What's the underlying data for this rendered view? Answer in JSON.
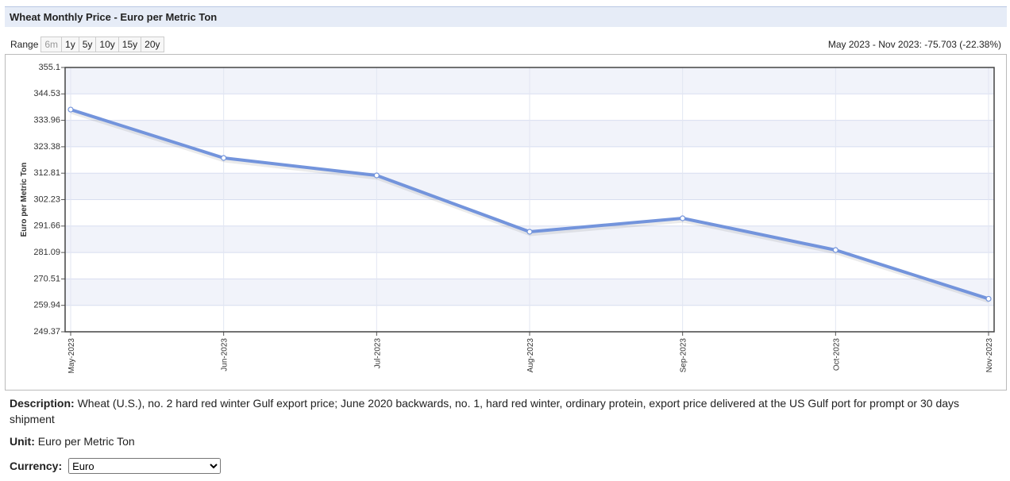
{
  "range_label": "Range",
  "range_buttons": [
    "6m",
    "1y",
    "5y",
    "10y",
    "15y",
    "20y"
  ],
  "description_label": "Description:",
  "description": "Wheat (U.S.), no. 2 hard red winter Gulf export price; June 2020 backwards, no. 1, hard red winter, ordinary protein, export price delivered at the US Gulf port for prompt or 30 days shipment",
  "unit_label": "Unit:",
  "unit": "Euro per Metric Ton",
  "currency_label": "Currency:",
  "currency": "Euro",
  "chart_data": {
    "type": "line",
    "title": "Wheat Monthly Price - Euro per Metric Ton",
    "summary": "May 2023 - Nov 2023: -75.703 (-22.38%)",
    "y_label": "Euro per Metric Ton",
    "categories": [
      "May-2023",
      "Jun-2023",
      "Jul-2023",
      "Aug-2023",
      "Sep-2023",
      "Oct-2023",
      "Nov-2023"
    ],
    "values": [
      338.26,
      318.9,
      311.92,
      289.38,
      294.77,
      282.07,
      262.56
    ],
    "color": "#7394dc",
    "ylim": [
      249.37,
      355.1
    ],
    "yticks": [
      249.37,
      259.94,
      270.51,
      281.09,
      291.66,
      302.23,
      312.81,
      323.38,
      333.96,
      344.53,
      355.1
    ],
    "grid": true
  }
}
